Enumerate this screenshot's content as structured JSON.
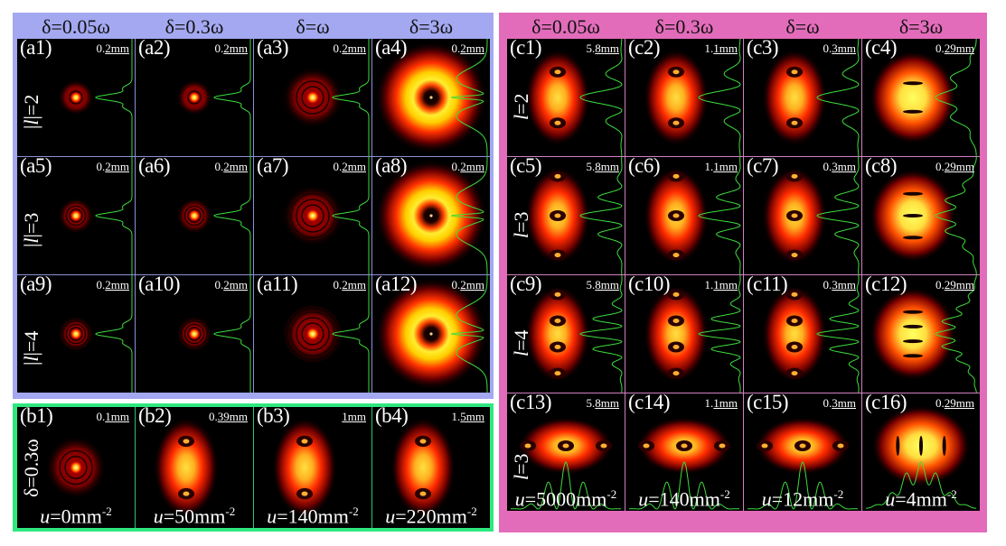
{
  "colors": {
    "group_a_bg": "#a3a8f0",
    "group_b_bg": "#2ee87f",
    "group_c_bg": "#e26cba",
    "profile_line": "#3ddc3d"
  },
  "group_a": {
    "columns": [
      "δ=0.05ω",
      "δ=0.3ω",
      "δ=ω",
      "δ=3ω"
    ],
    "rows": [
      {
        "label_prefix": "|",
        "label_var": "l",
        "label_suffix": "|=2",
        "panels": [
          {
            "id": "(a1)",
            "scale": "0.2mm",
            "scale_a": "0.",
            "scale_b": "2mm"
          },
          {
            "id": "(a2)",
            "scale": "0.2mm",
            "scale_a": "0.",
            "scale_b": "2mm"
          },
          {
            "id": "(a3)",
            "scale": "0.2mm",
            "scale_a": "0.",
            "scale_b": "2mm"
          },
          {
            "id": "(a4)",
            "scale": "0.2mm",
            "scale_a": "0.",
            "scale_b": "2mm"
          }
        ]
      },
      {
        "label_prefix": "|",
        "label_var": "l",
        "label_suffix": "|=3",
        "panels": [
          {
            "id": "(a5)",
            "scale": "0.2mm",
            "scale_a": "0.",
            "scale_b": "2mm"
          },
          {
            "id": "(a6)",
            "scale": "0.2mm",
            "scale_a": "0.",
            "scale_b": "2mm"
          },
          {
            "id": "(a7)",
            "scale": "0.2mm",
            "scale_a": "0.",
            "scale_b": "2mm"
          },
          {
            "id": "(a8)",
            "scale": "0.2mm",
            "scale_a": "0.",
            "scale_b": "2mm"
          }
        ]
      },
      {
        "label_prefix": "|",
        "label_var": "l",
        "label_suffix": "|=4",
        "panels": [
          {
            "id": "(a9)",
            "scale": "0.2mm",
            "scale_a": "0.",
            "scale_b": "2mm"
          },
          {
            "id": "(a10)",
            "scale": "0.2mm",
            "scale_a": "0.",
            "scale_b": "2mm"
          },
          {
            "id": "(a11)",
            "scale": "0.2mm",
            "scale_a": "0.",
            "scale_b": "2mm"
          },
          {
            "id": "(a12)",
            "scale": "0.2mm",
            "scale_a": "0.",
            "scale_b": "2mm"
          }
        ]
      }
    ]
  },
  "group_b": {
    "row_label": "δ=0.3ω",
    "panels": [
      {
        "id": "(b1)",
        "scale_a": "0.",
        "scale_b": "1mm",
        "u_var": "u",
        "u_value": "=0mm",
        "u_exp": "-2"
      },
      {
        "id": "(b2)",
        "scale_a": "0.",
        "scale_b": "39mm",
        "u_var": "u",
        "u_value": "=50mm",
        "u_exp": "-2"
      },
      {
        "id": "(b3)",
        "scale_a": "",
        "scale_b": "1mm",
        "u_var": "u",
        "u_value": "=140mm",
        "u_exp": "-2"
      },
      {
        "id": "(b4)",
        "scale_a": "1.",
        "scale_b": "5mm",
        "u_var": "u",
        "u_value": "=220mm",
        "u_exp": "-2"
      }
    ]
  },
  "group_c": {
    "columns": [
      "δ=0.05ω",
      "δ=0.3ω",
      "δ=ω",
      "δ=3ω"
    ],
    "rows": [
      {
        "label_var": "l",
        "label_suffix": "=2",
        "panels": [
          {
            "id": "(c1)",
            "scale_a": "5.",
            "scale_b": "8mm"
          },
          {
            "id": "(c2)",
            "scale_a": "1.",
            "scale_b": "1mm"
          },
          {
            "id": "(c3)",
            "scale_a": "0.",
            "scale_b": "3mm"
          },
          {
            "id": "(c4)",
            "scale_a": "0.",
            "scale_b": "29mm"
          }
        ]
      },
      {
        "label_var": "l",
        "label_suffix": "=3",
        "panels": [
          {
            "id": "(c5)",
            "scale_a": "5.",
            "scale_b": "8mm"
          },
          {
            "id": "(c6)",
            "scale_a": "1.",
            "scale_b": "1mm"
          },
          {
            "id": "(c7)",
            "scale_a": "0.",
            "scale_b": "3mm"
          },
          {
            "id": "(c8)",
            "scale_a": "0.",
            "scale_b": "29mm"
          }
        ]
      },
      {
        "label_var": "l",
        "label_suffix": "=4",
        "panels": [
          {
            "id": "(c9)",
            "scale_a": "5.",
            "scale_b": "8mm"
          },
          {
            "id": "(c10)",
            "scale_a": "1.",
            "scale_b": "1mm"
          },
          {
            "id": "(c11)",
            "scale_a": "0.",
            "scale_b": "3mm"
          },
          {
            "id": "(c12)",
            "scale_a": "0.",
            "scale_b": "29mm"
          }
        ]
      },
      {
        "label_var": "l",
        "label_suffix": "=3",
        "panels": [
          {
            "id": "(c13)",
            "scale_a": "5.",
            "scale_b": "8mm",
            "u_var": "u",
            "u_value": "=5000mm",
            "u_exp": "-2"
          },
          {
            "id": "(c14)",
            "scale_a": "1.",
            "scale_b": "1mm",
            "u_var": "u",
            "u_value": "=140mm",
            "u_exp": "-2"
          },
          {
            "id": "(c15)",
            "scale_a": "0.",
            "scale_b": "3mm",
            "u_var": "u",
            "u_value": "=12mm",
            "u_exp": "-2"
          },
          {
            "id": "(c16)",
            "scale_a": "0.",
            "scale_b": "29mm",
            "u_var": "u",
            "u_value": "=4mm",
            "u_exp": "-2"
          }
        ]
      }
    ]
  }
}
